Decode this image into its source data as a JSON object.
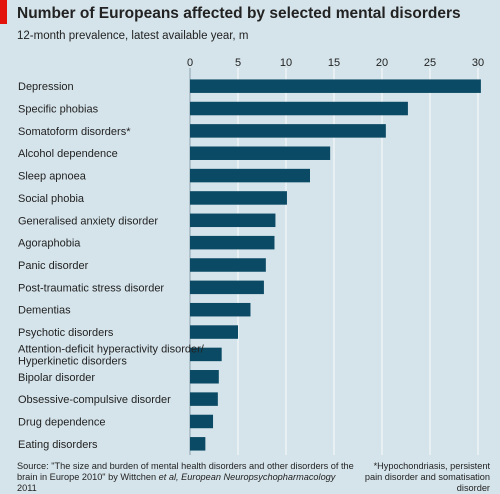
{
  "chart_data": {
    "type": "bar",
    "orientation": "horizontal",
    "title": "Number of Europeans affected by selected mental disorders",
    "subtitle": "12-month prevalence, latest available year, m",
    "xlim": [
      0,
      30
    ],
    "xticks": [
      0,
      5,
      10,
      15,
      20,
      25,
      30
    ],
    "grid": true,
    "bar_color": "#0b4a64",
    "categories": [
      "Depression",
      "Specific phobias",
      "Somatoform disorders*",
      "Alcohol dependence",
      "Sleep apnoea",
      "Social phobia",
      "Generalised anxiety disorder",
      "Agoraphobia",
      "Panic disorder",
      "Post-traumatic stress disorder",
      "Dementias",
      "Psychotic disorders",
      "Attention-deficit hyperactivity disorder/\nHyperkinetic disorders",
      "Bipolar disorder",
      "Obsessive-compulsive disorder",
      "Drug dependence",
      "Eating disorders"
    ],
    "values": [
      30.3,
      22.7,
      20.4,
      14.6,
      12.5,
      10.1,
      8.9,
      8.8,
      7.9,
      7.7,
      6.3,
      5.0,
      3.3,
      3.0,
      2.9,
      2.4,
      1.6
    ]
  },
  "source": {
    "text_before": "Source: \"The size and burden of mental health disorders and other disorders of the brain in Europe 2010\" by Wittchen ",
    "italic": "et al, European Neuropsychopharmacology",
    "text_after": " 2011"
  },
  "footnote": "*Hypochondriasis, persistent pain disorder and somatisation disorder"
}
